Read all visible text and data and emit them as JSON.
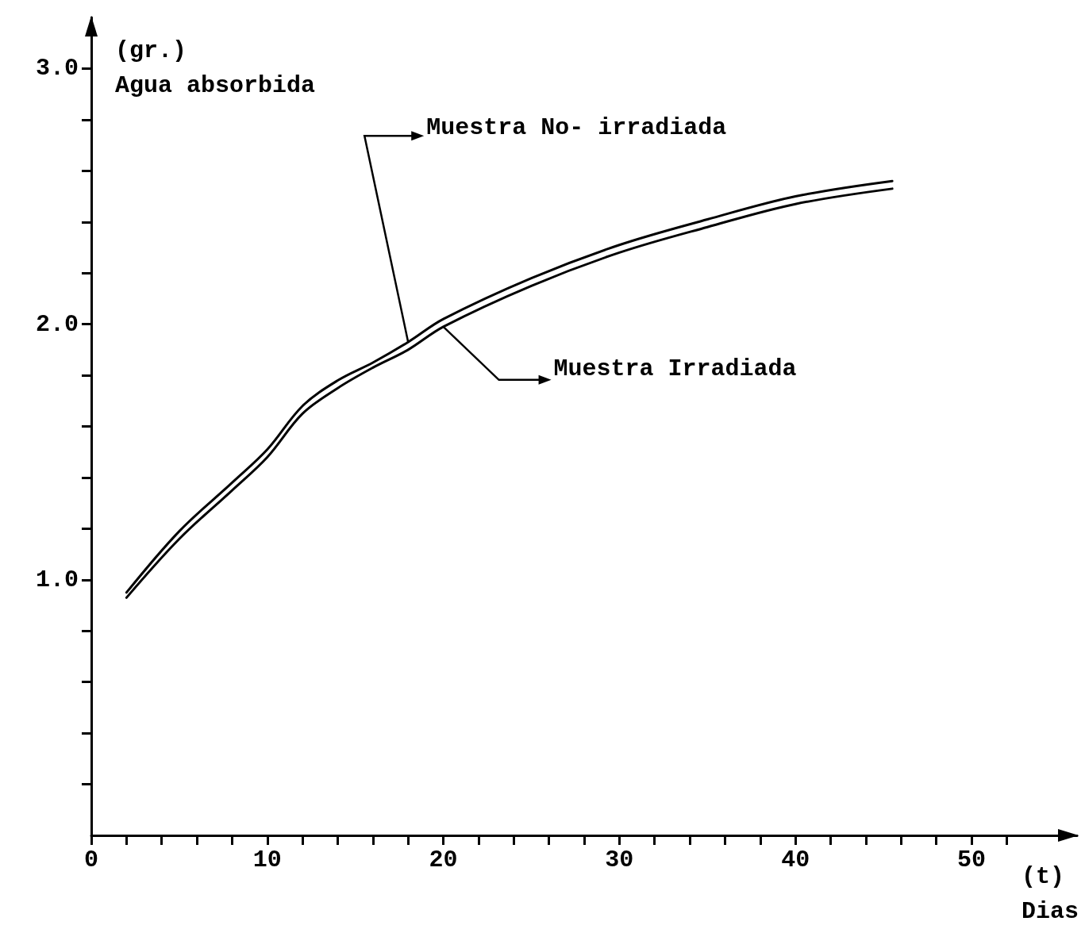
{
  "chart_data": {
    "type": "line",
    "xlabel": "(t)\nDias",
    "ylabel": "(gr.)\nAgua absorbida",
    "x": [
      2,
      5,
      8,
      10,
      12,
      14,
      16,
      18,
      20,
      25,
      30,
      35,
      40,
      45.5
    ],
    "series": [
      {
        "name": "Muestra No- irradiada",
        "color": "#000000",
        "values": [
          0.95,
          1.19,
          1.38,
          1.51,
          1.68,
          1.78,
          1.85,
          1.93,
          2.02,
          2.18,
          2.31,
          2.41,
          2.5,
          2.56
        ]
      },
      {
        "name": "Muestra Irradiada",
        "color": "#000000",
        "values": [
          0.93,
          1.16,
          1.35,
          1.48,
          1.65,
          1.75,
          1.83,
          1.9,
          1.99,
          2.15,
          2.28,
          2.38,
          2.47,
          2.53
        ]
      }
    ],
    "xlim": [
      0,
      56
    ],
    "xticks": [
      0,
      {
        "value": 2,
        "label": null
      },
      {
        "value": 4,
        "label": null
      },
      {
        "value": 6,
        "label": null
      },
      {
        "value": 8,
        "label": null
      },
      10,
      {
        "value": 12,
        "label": null
      },
      {
        "value": 14,
        "label": null
      },
      {
        "value": 16,
        "label": null
      },
      {
        "value": 18,
        "label": null
      },
      20,
      {
        "value": 22,
        "label": null
      },
      {
        "value": 24,
        "label": null
      },
      {
        "value": 26,
        "label": null
      },
      {
        "value": 28,
        "label": null
      },
      30,
      {
        "value": 32,
        "label": null
      },
      {
        "value": 34,
        "label": null
      },
      {
        "value": 36,
        "label": null
      },
      {
        "value": 38,
        "label": null
      },
      40,
      {
        "value": 42,
        "label": null
      },
      {
        "value": 44,
        "label": null
      },
      {
        "value": 46,
        "label": null
      },
      {
        "value": 48,
        "label": null
      },
      50,
      {
        "value": 52,
        "label": null
      }
    ],
    "ylim": [
      0,
      3.2
    ],
    "yticks": [
      {
        "value": 0.2,
        "label": null
      },
      {
        "value": 0.4,
        "label": null
      },
      {
        "value": 0.6,
        "label": null
      },
      {
        "value": 0.8,
        "label": null
      },
      {
        "value": 1,
        "label": "1.0"
      },
      {
        "value": 1.2,
        "label": null
      },
      {
        "value": 1.4,
        "label": null
      },
      {
        "value": 1.6,
        "label": null
      },
      {
        "value": 1.8,
        "label": null
      },
      {
        "value": 2,
        "label": "2.0"
      },
      {
        "value": 2.2,
        "label": null
      },
      {
        "value": 2.4,
        "label": null
      },
      {
        "value": 2.6,
        "label": null
      },
      {
        "value": 2.8,
        "label": null
      },
      {
        "value": 3,
        "label": "3.0"
      }
    ],
    "marker": "none",
    "line_style": "solid",
    "legend": "top"
  }
}
